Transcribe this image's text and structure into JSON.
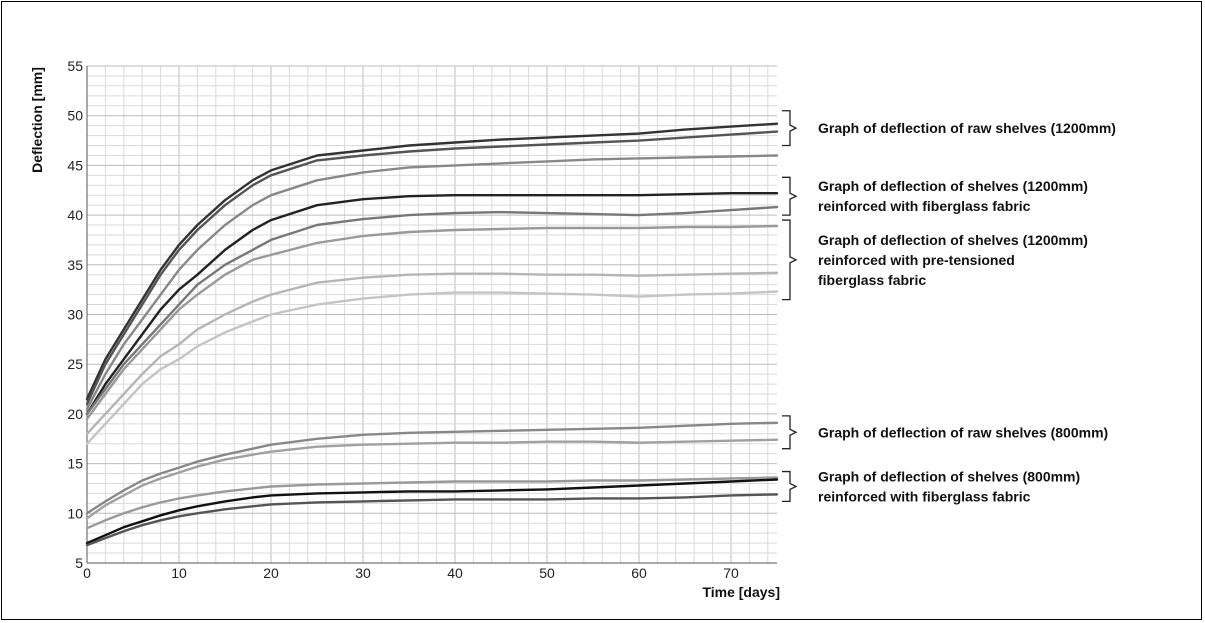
{
  "chart_data": {
    "type": "line",
    "title": "",
    "xlabel": "Time [days]",
    "ylabel": "Deflection [mm]",
    "xlim": [
      0,
      75
    ],
    "ylim": [
      5,
      55
    ],
    "x_ticks": [
      0,
      10,
      20,
      30,
      40,
      50,
      60,
      70
    ],
    "y_ticks": [
      5,
      10,
      15,
      20,
      25,
      30,
      35,
      40,
      45,
      50,
      55
    ],
    "grid": true,
    "x": [
      0,
      2,
      4,
      6,
      8,
      10,
      12,
      15,
      18,
      20,
      25,
      30,
      35,
      40,
      45,
      50,
      55,
      60,
      65,
      70,
      75
    ],
    "series": [
      {
        "values": [
          21.5,
          25.5,
          28.5,
          31.5,
          34.5,
          37.0,
          39.0,
          41.5,
          43.5,
          44.5,
          46.0,
          46.5,
          47.0,
          47.3,
          47.6,
          47.8,
          48.0,
          48.2,
          48.6,
          48.9,
          49.2
        ],
        "color": "#333333"
      },
      {
        "values": [
          21.0,
          25.0,
          28.0,
          31.0,
          34.0,
          36.5,
          38.5,
          41.0,
          43.0,
          44.0,
          45.5,
          46.0,
          46.4,
          46.7,
          46.9,
          47.1,
          47.3,
          47.5,
          47.8,
          48.1,
          48.4
        ],
        "color": "#555555"
      },
      {
        "values": [
          20.5,
          24.0,
          27.0,
          29.5,
          32.0,
          34.5,
          36.5,
          39.0,
          41.0,
          42.0,
          43.5,
          44.3,
          44.8,
          45.0,
          45.2,
          45.4,
          45.6,
          45.7,
          45.8,
          45.9,
          46.0
        ],
        "color": "#888888"
      },
      {
        "values": [
          20.0,
          23.0,
          25.5,
          28.0,
          30.5,
          32.5,
          34.0,
          36.5,
          38.5,
          39.5,
          41.0,
          41.6,
          41.9,
          42.0,
          42.0,
          42.0,
          42.0,
          42.0,
          42.1,
          42.2,
          42.2
        ],
        "color": "#222222"
      },
      {
        "values": [
          20.0,
          22.5,
          25.0,
          27.0,
          29.0,
          31.0,
          33.0,
          35.0,
          36.5,
          37.5,
          39.0,
          39.6,
          40.0,
          40.2,
          40.3,
          40.2,
          40.1,
          40.0,
          40.2,
          40.5,
          40.8
        ],
        "color": "#777777"
      },
      {
        "values": [
          19.5,
          22.0,
          24.5,
          26.5,
          28.5,
          30.5,
          32.0,
          34.0,
          35.5,
          36.0,
          37.2,
          37.9,
          38.3,
          38.5,
          38.6,
          38.7,
          38.7,
          38.7,
          38.8,
          38.8,
          38.9
        ],
        "color": "#999999"
      },
      {
        "values": [
          18.0,
          20.0,
          22.0,
          24.0,
          25.8,
          27.0,
          28.5,
          30.0,
          31.3,
          32.0,
          33.2,
          33.7,
          34.0,
          34.1,
          34.1,
          34.0,
          34.0,
          33.9,
          34.0,
          34.1,
          34.2
        ],
        "color": "#b5b5b5"
      },
      {
        "values": [
          17.0,
          19.0,
          21.0,
          23.0,
          24.5,
          25.5,
          26.8,
          28.2,
          29.3,
          30.0,
          31.0,
          31.6,
          32.0,
          32.2,
          32.2,
          32.1,
          32.0,
          31.8,
          32.0,
          32.1,
          32.3
        ],
        "color": "#c4c4c4"
      },
      {
        "values": [
          10.0,
          11.2,
          12.3,
          13.3,
          14.0,
          14.6,
          15.2,
          15.9,
          16.5,
          16.9,
          17.5,
          17.9,
          18.1,
          18.2,
          18.3,
          18.4,
          18.5,
          18.6,
          18.8,
          19.0,
          19.1
        ],
        "color": "#888888"
      },
      {
        "values": [
          9.5,
          10.8,
          11.8,
          12.8,
          13.5,
          14.1,
          14.7,
          15.4,
          15.9,
          16.2,
          16.7,
          16.9,
          17.0,
          17.1,
          17.1,
          17.2,
          17.2,
          17.1,
          17.2,
          17.3,
          17.4
        ],
        "color": "#a0a0a0"
      },
      {
        "values": [
          8.5,
          9.3,
          10.0,
          10.6,
          11.1,
          11.5,
          11.8,
          12.2,
          12.5,
          12.7,
          12.9,
          13.0,
          13.1,
          13.2,
          13.2,
          13.2,
          13.3,
          13.3,
          13.4,
          13.5,
          13.6
        ],
        "color": "#9a9a9a"
      },
      {
        "values": [
          7.0,
          7.8,
          8.6,
          9.2,
          9.8,
          10.3,
          10.7,
          11.2,
          11.6,
          11.8,
          12.0,
          12.1,
          12.2,
          12.2,
          12.3,
          12.4,
          12.6,
          12.8,
          13.0,
          13.2,
          13.4
        ],
        "color": "#111111"
      },
      {
        "values": [
          6.8,
          7.5,
          8.2,
          8.8,
          9.3,
          9.7,
          10.0,
          10.4,
          10.7,
          10.9,
          11.1,
          11.2,
          11.3,
          11.4,
          11.4,
          11.4,
          11.5,
          11.5,
          11.6,
          11.8,
          11.9
        ],
        "color": "#555555"
      }
    ],
    "annotations": [
      {
        "lines": [
          "Graph of deflection of raw shelves (1200mm)"
        ],
        "y_range": [
          47.0,
          50.5
        ]
      },
      {
        "lines": [
          "Graph of deflection of shelves (1200mm)",
          "reinforced with fiberglass fabric"
        ],
        "y_range": [
          40.0,
          43.8
        ]
      },
      {
        "lines": [
          "Graph of deflection of shelves (1200mm)",
          "reinforced with pre-tensioned",
          "fiberglass fabric"
        ],
        "y_range": [
          31.5,
          39.5
        ]
      },
      {
        "lines": [
          "Graph of deflection of raw shelves (800mm)"
        ],
        "y_range": [
          16.5,
          19.8
        ]
      },
      {
        "lines": [
          "Graph of deflection of shelves (800mm)",
          "reinforced with fiberglass fabric"
        ],
        "y_range": [
          11.2,
          14.2
        ]
      }
    ]
  }
}
